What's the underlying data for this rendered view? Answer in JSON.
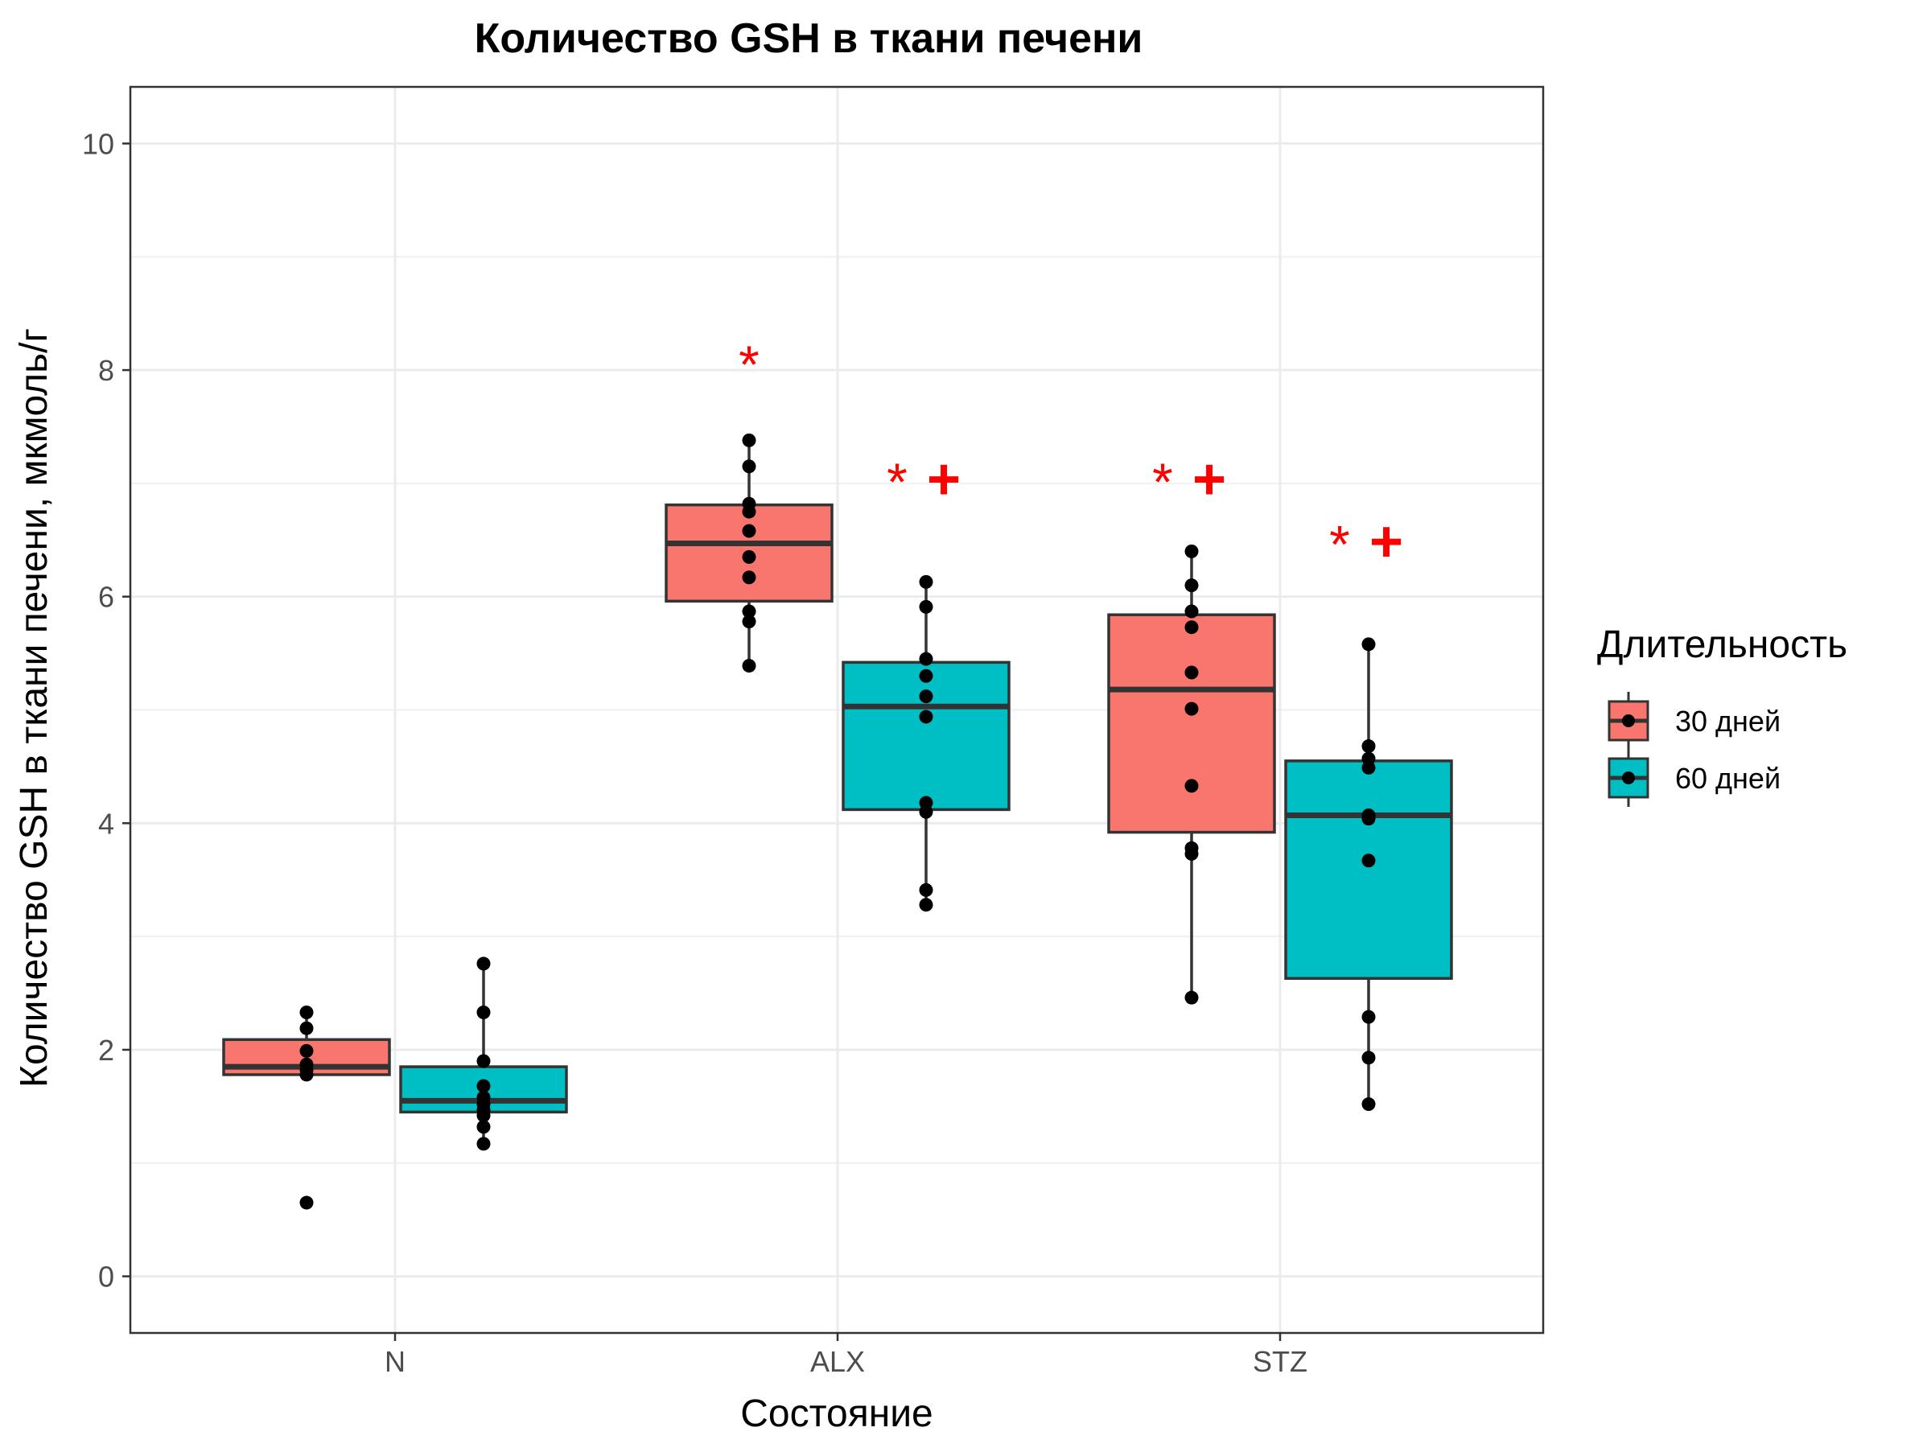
{
  "chart_data": {
    "type": "box",
    "title": "Количество GSH в ткани печени",
    "xlabel": "Состояние",
    "ylabel": "Количество GSH в ткани печени, мкмоль/г",
    "ylim": [
      -0.5,
      10.5
    ],
    "yticks": [
      "0",
      "2",
      "4",
      "6",
      "8",
      "10"
    ],
    "grid": true,
    "legend_position": "right",
    "categories": [
      "N",
      "ALX",
      "STZ"
    ],
    "legend": {
      "title": "Длительность",
      "entries": [
        {
          "name": "30 дней",
          "color": "#F8766D"
        },
        {
          "name": "60 дней",
          "color": "#00BFC4"
        }
      ]
    },
    "series": [
      {
        "name": "30 дней",
        "color": "#F8766D",
        "boxes": [
          {
            "category": "N",
            "q1": 1.78,
            "median": 1.85,
            "q3": 2.09,
            "whisker_low": 1.76,
            "whisker_high": 2.33,
            "outliers": [
              0.65
            ],
            "points": [
              2.33,
              2.19,
              1.99,
              1.87,
              1.82,
              1.78,
              0.65
            ]
          },
          {
            "category": "ALX",
            "q1": 5.96,
            "median": 6.47,
            "q3": 6.81,
            "whisker_low": 5.39,
            "whisker_high": 7.38,
            "outliers": [],
            "points": [
              7.38,
              7.15,
              6.82,
              6.75,
              6.58,
              6.35,
              6.17,
              5.87,
              5.78,
              5.39
            ]
          },
          {
            "category": "STZ",
            "q1": 3.92,
            "median": 5.18,
            "q3": 5.84,
            "whisker_low": 2.46,
            "whisker_high": 6.4,
            "outliers": [],
            "points": [
              6.4,
              6.1,
              5.87,
              5.73,
              5.33,
              5.01,
              4.33,
              3.78,
              3.73,
              2.46
            ]
          }
        ]
      },
      {
        "name": "60 дней",
        "color": "#00BFC4",
        "boxes": [
          {
            "category": "N",
            "q1": 1.45,
            "median": 1.55,
            "q3": 1.85,
            "whisker_low": 1.17,
            "whisker_high": 2.76,
            "outliers": [],
            "points": [
              2.76,
              2.33,
              1.9,
              1.68,
              1.58,
              1.52,
              1.47,
              1.42,
              1.32,
              1.17
            ]
          },
          {
            "category": "ALX",
            "q1": 4.12,
            "median": 5.03,
            "q3": 5.42,
            "whisker_low": 3.28,
            "whisker_high": 6.13,
            "outliers": [],
            "points": [
              6.13,
              5.91,
              5.45,
              5.3,
              5.12,
              4.94,
              4.18,
              4.1,
              3.41,
              3.28
            ]
          },
          {
            "category": "STZ",
            "q1": 2.63,
            "median": 4.07,
            "q3": 4.55,
            "whisker_low": 1.52,
            "whisker_high": 5.58,
            "outliers": [],
            "points": [
              5.58,
              4.68,
              4.57,
              4.49,
              4.07,
              4.04,
              3.67,
              2.29,
              1.93,
              1.52
            ]
          }
        ]
      }
    ],
    "annotations": [
      {
        "category": "ALX",
        "series": "30 дней",
        "text": "*",
        "y": 8.1
      },
      {
        "category": "ALX",
        "series": "60 дней",
        "text": "*+",
        "y": 7.05
      },
      {
        "category": "STZ",
        "series": "30 дней",
        "text": "*+",
        "y": 7.05
      },
      {
        "category": "STZ",
        "series": "60 дней",
        "text": "*+",
        "y": 6.5
      }
    ]
  }
}
